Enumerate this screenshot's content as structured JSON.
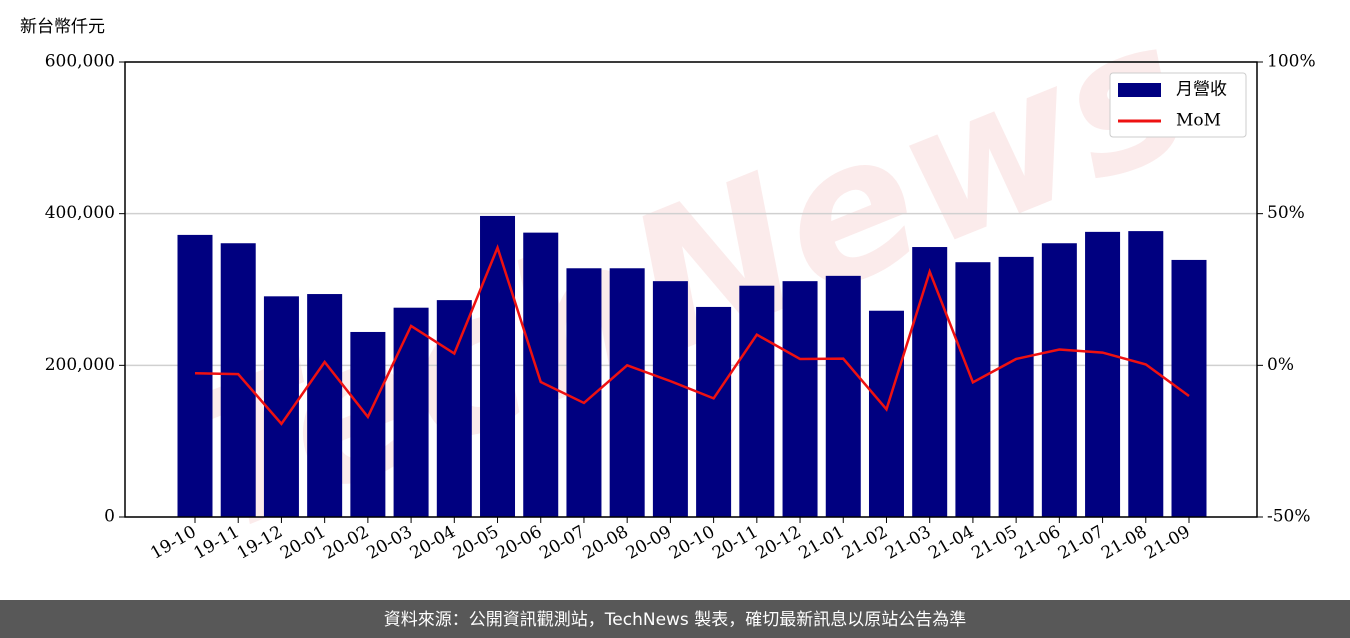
{
  "chart_data": {
    "type": "bar-line",
    "y_label": "新台幣仟元",
    "watermark": "TechNews",
    "footer": "資料來源：公開資訊觀測站，TechNews 製表，確切最新訊息以原站公告為準",
    "categories": [
      "19-10",
      "19-11",
      "19-12",
      "20-01",
      "20-02",
      "20-03",
      "20-04",
      "20-05",
      "20-06",
      "20-07",
      "20-08",
      "20-09",
      "20-10",
      "20-11",
      "20-12",
      "21-01",
      "21-02",
      "21-03",
      "21-04",
      "21-05",
      "21-06",
      "21-07",
      "21-08",
      "21-09"
    ],
    "series": [
      {
        "name": "月營收",
        "type": "bar",
        "color": "#000080",
        "values": [
          372000,
          361000,
          291000,
          294000,
          244000,
          276000,
          286000,
          397000,
          375000,
          328000,
          328000,
          311000,
          277000,
          305000,
          311000,
          318000,
          272000,
          356000,
          336000,
          343000,
          361000,
          376000,
          377000,
          339000
        ]
      },
      {
        "name": "MoM",
        "type": "line",
        "axis": "y2",
        "color": "#ee1111",
        "values": [
          -2.6,
          -2.9,
          -19.3,
          1.1,
          -17,
          13,
          3.9,
          38.8,
          -5.5,
          -12.4,
          0,
          -5.2,
          -10.9,
          10.1,
          2.1,
          2.2,
          -14.5,
          30.9,
          -5.6,
          2.1,
          5.2,
          4.2,
          0.3,
          -10.1
        ]
      }
    ],
    "ylim": [
      0,
      600000
    ],
    "yticks": [
      0,
      {
        "value": 200000,
        "label": "200,000"
      },
      {
        "value": 400000,
        "label": "400,000"
      },
      {
        "value": 600000,
        "label": "600,000"
      }
    ],
    "y2lim": [
      -50,
      100
    ],
    "y2ticks": [
      {
        "value": -50,
        "label": "-50%"
      },
      {
        "value": 0,
        "label": "0%"
      },
      {
        "value": 50,
        "label": "50%"
      },
      {
        "value": 100,
        "label": "100%"
      }
    ],
    "grid": true,
    "legend": "upper right"
  }
}
